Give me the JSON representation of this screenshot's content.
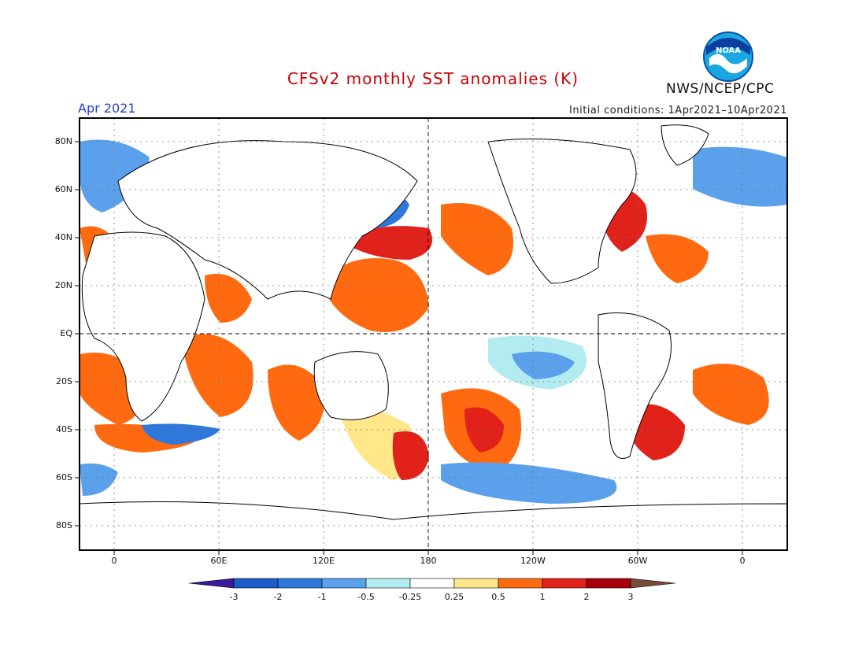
{
  "header": {
    "title": "CFSv2 monthly SST anomalies (K)",
    "month": "Apr 2021",
    "initial_conditions": "Initial conditions: 1Apr2021–10Apr2021",
    "agency": "NWS/NCEP/CPC",
    "logo_text": "NOAA"
  },
  "colors": {
    "title": "#cc0000",
    "month": "#1f3fe0",
    "frame": "#000000",
    "coast": "#000000"
  },
  "map": {
    "lat_labels": [
      "80N",
      "60N",
      "40N",
      "20N",
      "EQ",
      "20S",
      "40S",
      "60S",
      "80S"
    ],
    "lon_labels": [
      "0",
      "60E",
      "120E",
      "180",
      "120W",
      "60W",
      "0"
    ]
  },
  "colorbar": {
    "levels": [
      "-3",
      "-2",
      "-1",
      "-0.5",
      "-0.25",
      "0.25",
      "0.5",
      "1",
      "2",
      "3"
    ],
    "colors": [
      "#3a1a9e",
      "#1c5cc8",
      "#2e78dc",
      "#5aa0ea",
      "#b2ecf0",
      "#ffffff",
      "#ffe78a",
      "#ff6a10",
      "#e0221a",
      "#a8000a",
      "#7a4a3a"
    ]
  }
}
